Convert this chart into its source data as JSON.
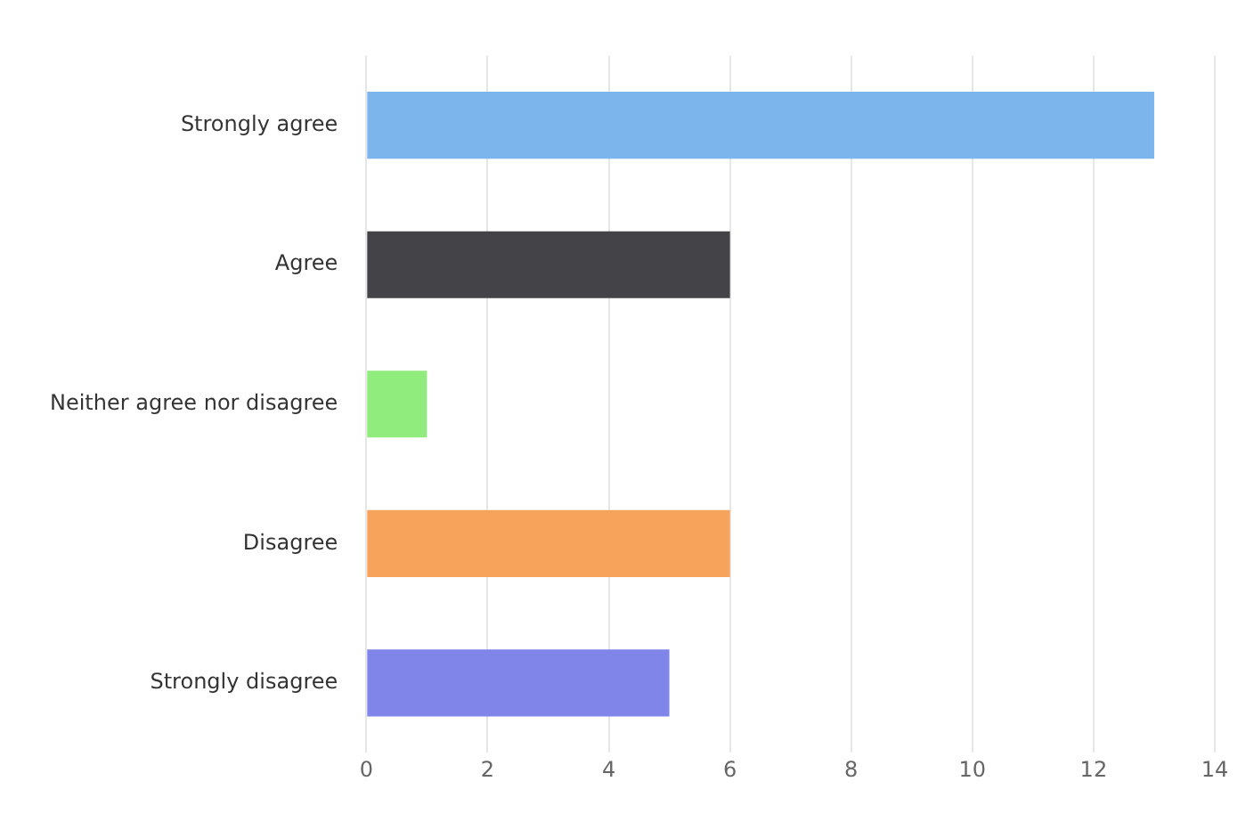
{
  "chart_data": {
    "type": "bar",
    "orientation": "horizontal",
    "categories": [
      "Strongly agree",
      "Agree",
      "Neither agree nor disagree",
      "Disagree",
      "Strongly disagree"
    ],
    "values": [
      13,
      6,
      1,
      6,
      5
    ],
    "colors": [
      "#7cb5ec",
      "#434348",
      "#90ed7d",
      "#f7a35c",
      "#8085e9"
    ],
    "xlim": [
      0,
      14
    ],
    "xticks": [
      0,
      2,
      4,
      6,
      8,
      10,
      12,
      14
    ],
    "grid": "x",
    "legend": false
  }
}
